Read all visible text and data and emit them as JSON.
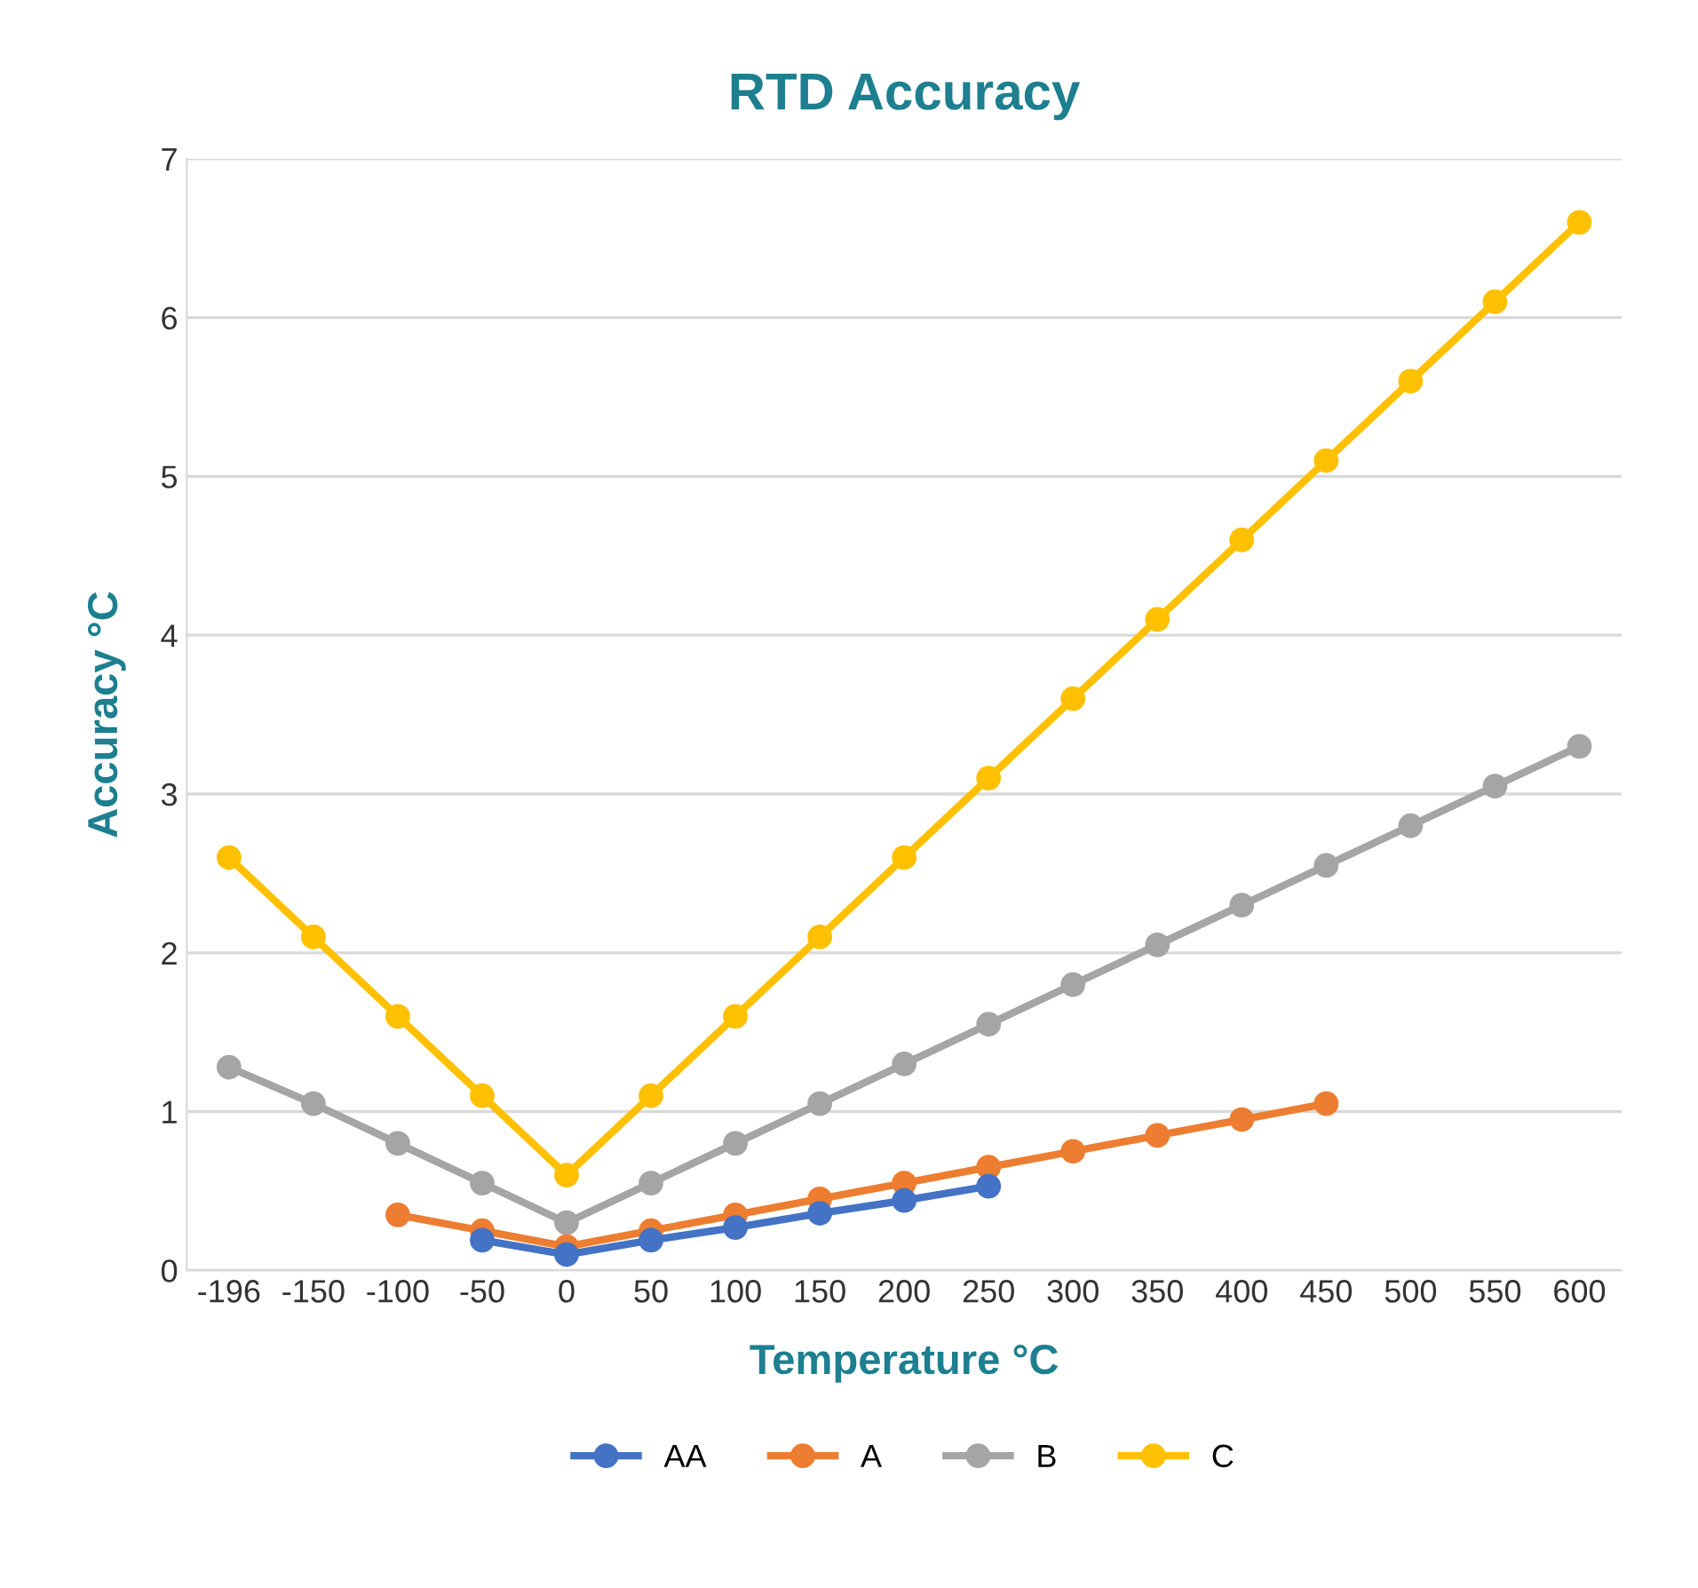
{
  "chart_data": {
    "type": "line",
    "title": "RTD Accuracy",
    "xlabel": "Temperature °C",
    "ylabel": "Accuracy °C",
    "categories": [
      "-196",
      "-150",
      "-100",
      "-50",
      "0",
      "50",
      "100",
      "150",
      "200",
      "250",
      "300",
      "350",
      "400",
      "450",
      "500",
      "550",
      "600"
    ],
    "series": [
      {
        "name": "AA",
        "color": "#4472c4",
        "values": [
          null,
          null,
          null,
          0.19,
          0.1,
          0.19,
          0.27,
          0.36,
          0.44,
          0.53,
          null,
          null,
          null,
          null,
          null,
          null,
          null
        ]
      },
      {
        "name": "A",
        "color": "#ed7d31",
        "values": [
          null,
          null,
          0.35,
          0.25,
          0.15,
          0.25,
          0.35,
          0.45,
          0.55,
          0.65,
          0.75,
          0.85,
          0.95,
          1.05,
          null,
          null,
          null
        ]
      },
      {
        "name": "B",
        "color": "#a5a5a5",
        "values": [
          1.28,
          1.05,
          0.8,
          0.55,
          0.3,
          0.55,
          0.8,
          1.05,
          1.3,
          1.55,
          1.8,
          2.05,
          2.3,
          2.55,
          2.8,
          3.05,
          3.3
        ]
      },
      {
        "name": "C",
        "color": "#ffc000",
        "values": [
          2.6,
          2.1,
          1.6,
          1.1,
          0.6,
          1.1,
          1.6,
          2.1,
          2.6,
          3.1,
          3.6,
          4.1,
          4.6,
          5.1,
          5.6,
          6.1,
          6.6
        ]
      }
    ],
    "ylim": [
      0,
      7
    ],
    "yticks": [
      0,
      1,
      2,
      3,
      4,
      5,
      6,
      7
    ],
    "grid": "y",
    "legend": "bottom",
    "marker": "circle",
    "line_style": "solid"
  }
}
